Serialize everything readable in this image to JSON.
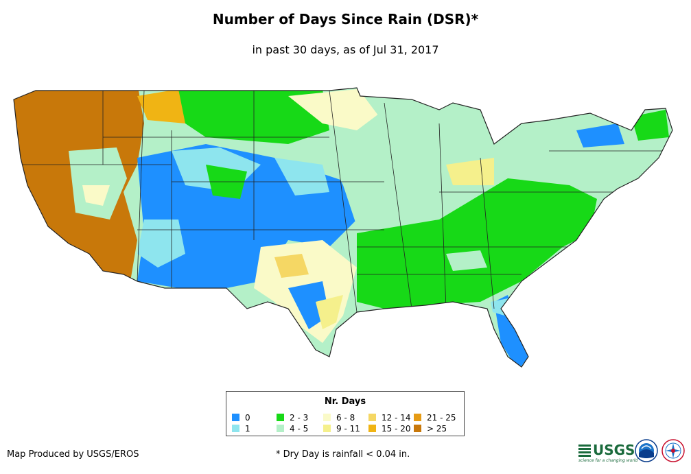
{
  "header": {
    "title": "Number of Days Since Rain (DSR)*",
    "subtitle": "in past 30 days, as of Jul 31, 2017"
  },
  "legend": {
    "title": "Nr. Days",
    "classes": [
      {
        "label": "0",
        "color": "#1e90ff"
      },
      {
        "label": "1",
        "color": "#8ee5ee"
      },
      {
        "label": "2 - 3",
        "color": "#17d917"
      },
      {
        "label": "4 - 5",
        "color": "#b4f0c8"
      },
      {
        "label": "6 - 8",
        "color": "#fafac8"
      },
      {
        "label": "9 - 11",
        "color": "#f5f08c"
      },
      {
        "label": "12 - 14",
        "color": "#f5d764"
      },
      {
        "label": "15 - 20",
        "color": "#f0b414"
      },
      {
        "label": "21 - 25",
        "color": "#e69b14"
      },
      {
        "label": "> 25",
        "color": "#c8780a"
      }
    ]
  },
  "footer": {
    "credit": "Map Produced by USGS/EROS",
    "footnote": "* Dry Day is rainfall < 0.04 in.",
    "usgs_logo": "USGS",
    "usgs_tagline": "science for a changing world"
  },
  "icons": {
    "noaa": "noaa-seal-icon",
    "nws": "nws-seal-icon"
  }
}
